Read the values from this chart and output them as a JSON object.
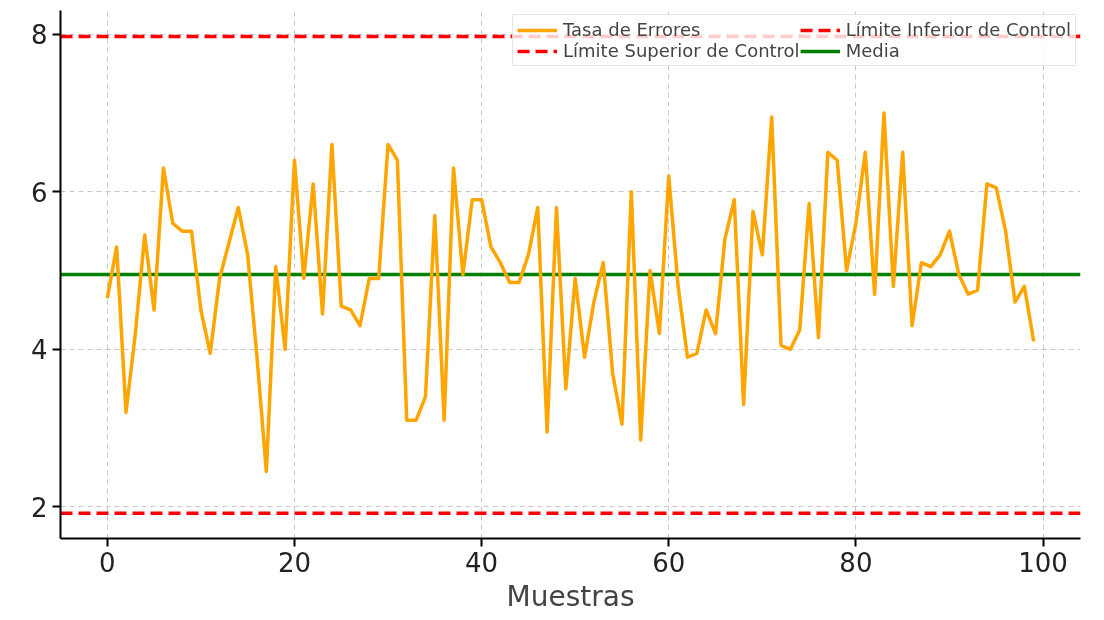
{
  "chart_data": {
    "type": "line",
    "xlabel": "Muestras",
    "x": [
      0,
      1,
      2,
      3,
      4,
      5,
      6,
      7,
      8,
      9,
      10,
      11,
      12,
      13,
      14,
      15,
      16,
      17,
      18,
      19,
      20,
      21,
      22,
      23,
      24,
      25,
      26,
      27,
      28,
      29,
      30,
      31,
      32,
      33,
      34,
      35,
      36,
      37,
      38,
      39,
      40,
      41,
      42,
      43,
      44,
      45,
      46,
      47,
      48,
      49,
      50,
      51,
      52,
      53,
      54,
      55,
      56,
      57,
      58,
      59,
      60,
      61,
      62,
      63,
      64,
      65,
      66,
      67,
      68,
      69,
      70,
      71,
      72,
      73,
      74,
      75,
      76,
      77,
      78,
      79,
      80,
      81,
      82,
      83,
      84,
      85,
      86,
      87,
      88,
      89,
      90,
      91,
      92,
      93,
      94,
      95,
      96,
      97,
      98,
      99
    ],
    "series": [
      {
        "name": "Tasa de Errores",
        "color": "#ffa500",
        "values": [
          4.65,
          5.3,
          3.2,
          4.2,
          5.45,
          4.5,
          6.3,
          5.6,
          5.5,
          5.5,
          4.5,
          3.95,
          4.9,
          5.35,
          5.8,
          5.2,
          3.9,
          2.45,
          5.05,
          4.0,
          6.4,
          4.9,
          6.1,
          4.45,
          6.6,
          4.55,
          4.5,
          4.3,
          4.9,
          4.9,
          6.6,
          6.4,
          3.1,
          3.1,
          3.4,
          5.7,
          3.1,
          6.3,
          4.95,
          5.9,
          5.9,
          5.3,
          5.1,
          4.85,
          4.85,
          5.2,
          5.8,
          2.95,
          5.8,
          3.5,
          4.9,
          3.9,
          4.6,
          5.1,
          3.7,
          3.05,
          6.0,
          2.85,
          5.0,
          4.2,
          6.2,
          4.8,
          3.9,
          3.95,
          4.5,
          4.2,
          5.4,
          5.9,
          3.3,
          5.75,
          5.2,
          6.95,
          4.05,
          4.0,
          4.25,
          5.85,
          4.15,
          6.5,
          6.4,
          5.0,
          5.6,
          6.5,
          4.7,
          7.0,
          4.8,
          6.5,
          4.3,
          5.1,
          5.05,
          5.2,
          5.5,
          4.95,
          4.7,
          4.75,
          6.1,
          6.05,
          5.5,
          4.6,
          4.8,
          4.1
        ]
      }
    ],
    "ref_lines": [
      {
        "axis": "y",
        "value": 7.97,
        "label": "Límite Superior de Control",
        "color": "#ff0000",
        "line_style": "dashed"
      },
      {
        "axis": "y",
        "value": 1.92,
        "label": "Límite Inferior de Control",
        "color": "#ff0000",
        "line_style": "dashed"
      },
      {
        "axis": "y",
        "value": 4.95,
        "label": "Media",
        "color": "#008000",
        "line_style": "solid"
      }
    ],
    "xlim": [
      -5,
      104
    ],
    "ylim": [
      1.6,
      8.3
    ],
    "xticks": [
      0,
      20,
      40,
      60,
      80,
      100
    ],
    "yticks": [
      2,
      4,
      6,
      8
    ],
    "grid": true,
    "legend": "top right",
    "line_style": "solid",
    "marker": "none"
  }
}
